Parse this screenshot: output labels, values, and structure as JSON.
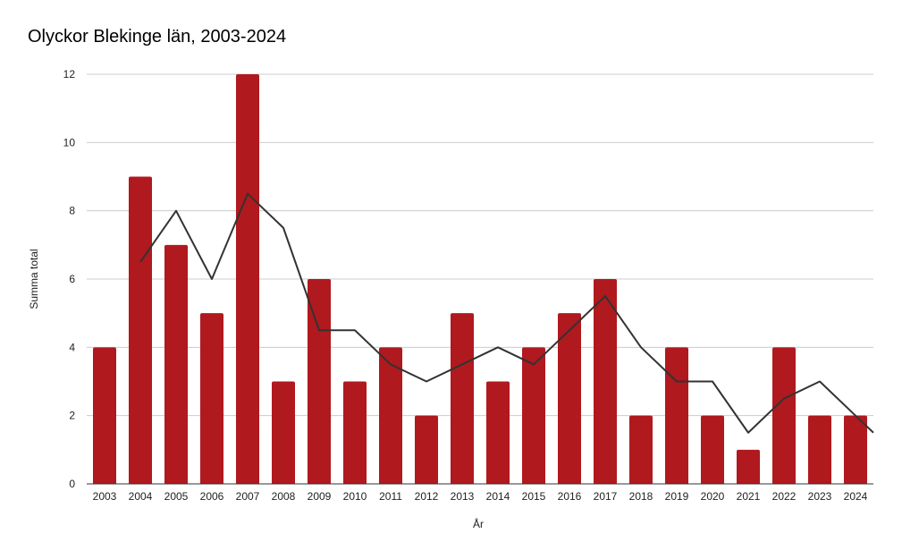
{
  "chart_data": {
    "type": "bar",
    "title": "Olyckor Blekinge län, 2003-2024",
    "xlabel": "År",
    "ylabel": "Summa total",
    "ylim": [
      0,
      12
    ],
    "yticks": [
      "0",
      "2",
      "4",
      "6",
      "8",
      "10",
      "12"
    ],
    "grid": true,
    "categories": [
      "2003",
      "2004",
      "2005",
      "2006",
      "2007",
      "2008",
      "2009",
      "2010",
      "2011",
      "2012",
      "2013",
      "2014",
      "2015",
      "2016",
      "2017",
      "2018",
      "2019",
      "2020",
      "2021",
      "2022",
      "2023",
      "2024"
    ],
    "series": [
      {
        "type": "bar",
        "values": [
          4,
          9,
          7,
          5,
          12,
          3,
          6,
          3,
          4,
          2,
          5,
          3,
          4,
          5,
          6,
          2,
          4,
          2,
          1,
          4,
          2,
          2
        ]
      },
      {
        "type": "line",
        "description": "2-period moving average",
        "values": [
          null,
          6.5,
          8,
          6,
          8.5,
          7.5,
          4.5,
          4.5,
          3.5,
          3,
          3.5,
          4,
          3.5,
          4.5,
          5.5,
          4,
          3,
          3,
          1.5,
          2.5,
          3,
          2
        ]
      }
    ],
    "colors": {
      "bar": "#b0191e",
      "line": "#333333",
      "grid": "#cccccc",
      "axis": "#333333"
    }
  }
}
